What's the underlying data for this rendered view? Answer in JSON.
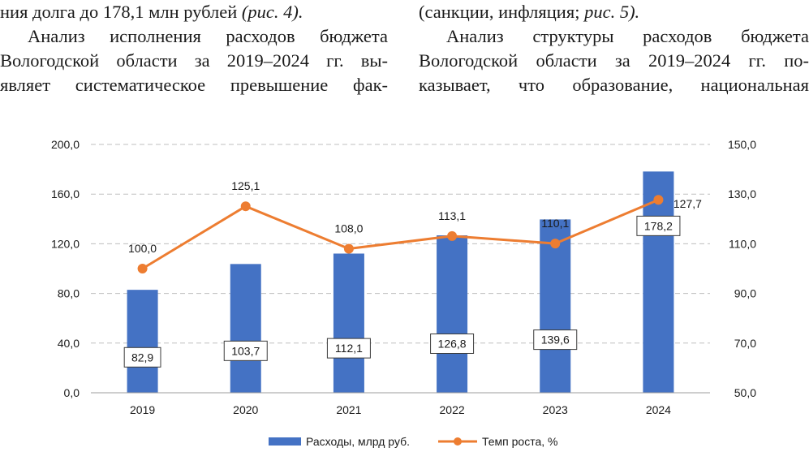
{
  "text_left": {
    "line1_plain": "ния долга до 178,1 млн рублей ",
    "line1_italic": "(рис. 4).",
    "line2": "Анализ исполнения расходов бюджета",
    "line3": "Вологодской области за 2019–2024 гг. вы-",
    "line4": "являет систематическое превышение фак-"
  },
  "text_right": {
    "line1_plain": "(санкции, инфляция; ",
    "line1_italic": "рис. 5).",
    "line2": "Анализ структуры расходов бюджета",
    "line3": "Вологодской области за 2019–2024 гг. по-",
    "line4": "казывает, что образование, национальная"
  },
  "colors": {
    "bar": "#4472C4",
    "line": "#ED7D31",
    "grid": "#BFBFBF",
    "text": "#1a1a1a"
  },
  "chart_data": {
    "type": "bar",
    "categories": [
      "2019",
      "2020",
      "2021",
      "2022",
      "2023",
      "2024"
    ],
    "series": [
      {
        "name": "Расходы, млрд руб.",
        "type": "bar",
        "axis": "left",
        "values": [
          82.9,
          103.7,
          112.1,
          126.8,
          139.6,
          178.2
        ],
        "labels": [
          "82,9",
          "103,7",
          "112,1",
          "126,8",
          "139,6",
          "178,2"
        ]
      },
      {
        "name": "Темп роста, %",
        "type": "line",
        "axis": "right",
        "values": [
          100.0,
          125.1,
          108.0,
          113.1,
          110.1,
          127.7
        ],
        "labels": [
          "100,0",
          "125,1",
          "108,0",
          "113,1",
          "110,1",
          "127,7"
        ]
      }
    ],
    "left_axis": {
      "min": 0,
      "max": 200,
      "ticks": [
        "0,0",
        "40,0",
        "80,0",
        "120,0",
        "160,0",
        "200,0"
      ]
    },
    "right_axis": {
      "min": 50,
      "max": 150,
      "ticks": [
        "50,0",
        "70,0",
        "90,0",
        "110,0",
        "130,0",
        "150,0"
      ]
    },
    "grid": true,
    "legend": "bottom"
  }
}
